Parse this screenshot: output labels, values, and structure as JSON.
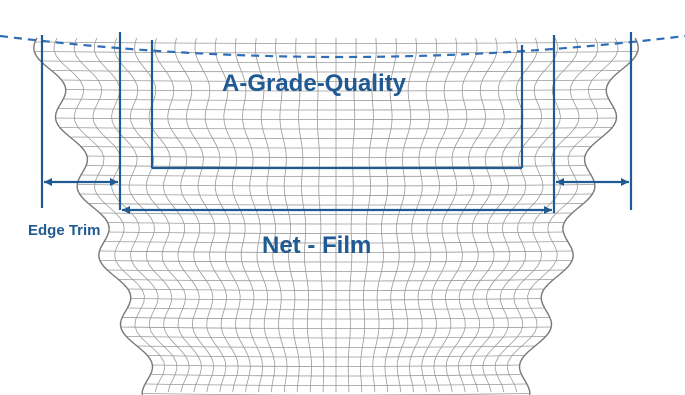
{
  "labels": {
    "grade": "A-Grade-Quality",
    "net_film": "Net - Film",
    "edge_trim": "Edge Trim"
  },
  "colors": {
    "annotation": "#1f5a93",
    "dashed_curve": "#2f6db5",
    "mesh": "#9a9a9a",
    "background": "#ffffff"
  }
}
